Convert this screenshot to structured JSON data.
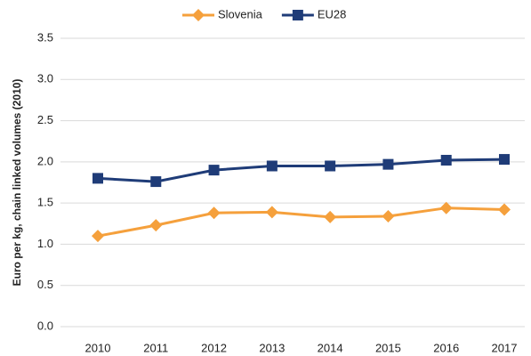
{
  "chart_data": {
    "type": "line",
    "y_label": "Euro per kg, chain linked volumes (2010)",
    "categories": [
      "2010",
      "2011",
      "2012",
      "2013",
      "2014",
      "2015",
      "2016",
      "2017"
    ],
    "series": [
      {
        "name": "Slovenia",
        "color": "#f5a03c",
        "marker": "diamond",
        "values": [
          1.1,
          1.23,
          1.38,
          1.39,
          1.33,
          1.34,
          1.44,
          1.42
        ]
      },
      {
        "name": "EU28",
        "color": "#1f3c78",
        "marker": "square",
        "values": [
          1.8,
          1.76,
          1.9,
          1.95,
          1.95,
          1.97,
          2.02,
          2.03
        ]
      }
    ],
    "ylim": [
      0,
      3.5
    ],
    "yticks": [
      {
        "value": 0,
        "label": "0.0"
      },
      0.5,
      {
        "value": 1,
        "label": "1.0"
      },
      1.5,
      {
        "value": 2,
        "label": "2.0"
      },
      2.5,
      {
        "value": 3,
        "label": "3.0"
      },
      3.5
    ],
    "grid": true,
    "legend": "top"
  }
}
